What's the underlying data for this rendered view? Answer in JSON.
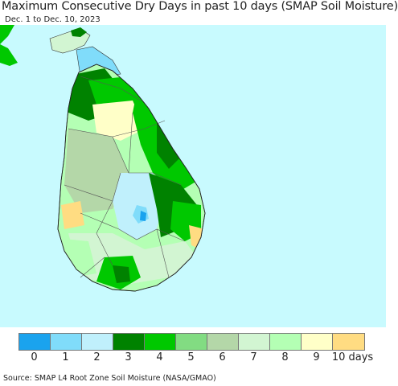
{
  "header": {
    "title": "Maximum Consecutive Dry Days in past 10 days (SMAP Soil Moisture)",
    "subtitle": "Dec. 1 to Dec. 10, 2023"
  },
  "legend": {
    "items": [
      {
        "label": "0",
        "color": "#1aa3ee"
      },
      {
        "label": "1",
        "color": "#80dcfa"
      },
      {
        "label": "2",
        "color": "#c0f0fc"
      },
      {
        "label": "3",
        "color": "#008200"
      },
      {
        "label": "4",
        "color": "#00c800"
      },
      {
        "label": "5",
        "color": "#82dc82"
      },
      {
        "label": "6",
        "color": "#b4d7a8"
      },
      {
        "label": "7",
        "color": "#d2f5d2"
      },
      {
        "label": "8",
        "color": "#b4ffb4"
      },
      {
        "label": "9",
        "color": "#ffffc8"
      },
      {
        "label": "10 days",
        "color": "#ffdc82"
      }
    ]
  },
  "colors": {
    "sea": "#c8fafe",
    "land_outside": "#b4ffb4",
    "boundary": "#555555"
  },
  "footer": {
    "source": "Source: SMAP L4 Root Zone Soil Moisture (NASA/GMAO)"
  }
}
